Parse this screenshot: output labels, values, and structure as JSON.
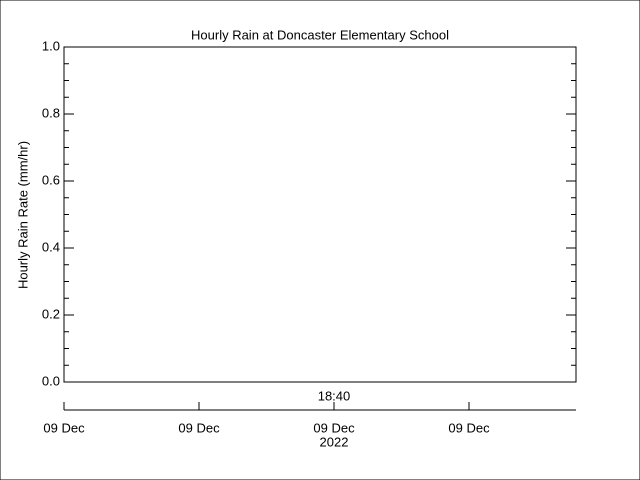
{
  "chart_data": {
    "type": "line",
    "title": "Hourly Rain at Doncaster Elementary School",
    "ylabel": "Hourly Rain Rate (mm/hr)",
    "ylim": [
      0,
      1
    ],
    "yticks": [
      {
        "value": 0,
        "label": "0.0"
      },
      0.2,
      0.4,
      0.6,
      0.8,
      {
        "value": 1,
        "label": "1.0"
      }
    ],
    "yminorticks": [
      0.05,
      0.1,
      0.15,
      0.25,
      0.3,
      0.35,
      0.45,
      0.5,
      0.55,
      0.65,
      0.7,
      0.75,
      0.85,
      0.9,
      0.95
    ],
    "xticks": [
      "09 Dec",
      "09 Dec",
      "09 Dec",
      "09 Dec"
    ],
    "xtime": "18:40",
    "xyear": "2022",
    "color": "#000000",
    "series": []
  }
}
